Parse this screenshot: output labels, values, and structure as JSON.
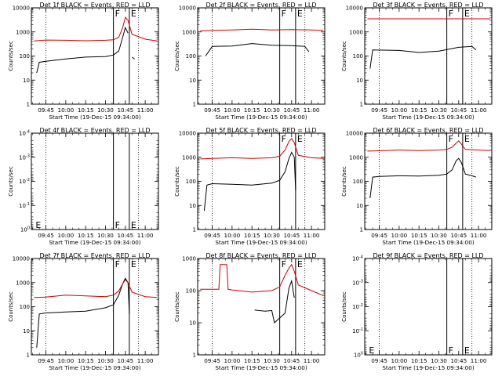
{
  "chart_data": [
    {
      "type": "line",
      "title": "Det 1f BLACK = Events, RED = LLD",
      "xlabel": "Start Time (19-Dec-15 09:34:00)",
      "ylabel": "Counts/sec",
      "ylim": [
        1,
        10000
      ],
      "ytick_labels": [
        "1",
        "10",
        "100",
        "1000",
        "10000"
      ],
      "xtick_labels": [
        "09:45",
        "10:00",
        "10:15",
        "10:30",
        "10:45",
        "11:00"
      ],
      "markers": [
        {
          "label": "F",
          "time": "10:36"
        },
        {
          "label": "E",
          "time": "10:48"
        }
      ],
      "dotted_lines": [
        "09:45",
        "10:55"
      ],
      "series": [
        {
          "name": "Events",
          "color": "#000000",
          "x": [
            "09:38",
            "09:40",
            "09:45",
            "10:00",
            "10:15",
            "10:30",
            "10:36",
            "10:40",
            "10:43",
            "10:45",
            "10:47",
            "10:48",
            "10:50",
            "10:52"
          ],
          "values": [
            20,
            55,
            60,
            75,
            90,
            95,
            110,
            160,
            600,
            1500,
            900,
            null,
            90,
            75
          ]
        },
        {
          "name": "LLD",
          "color": "#cc0000",
          "x": [
            "09:36",
            "09:45",
            "10:00",
            "10:15",
            "10:30",
            "10:36",
            "10:40",
            "10:43",
            "10:45",
            "10:47",
            "10:50",
            "11:00",
            "11:09"
          ],
          "values": [
            420,
            460,
            450,
            430,
            450,
            470,
            600,
            1500,
            4000,
            3000,
            800,
            500,
            420
          ]
        }
      ]
    },
    {
      "type": "line",
      "title": "Det 2f BLACK = Events, RED = LLD",
      "xlabel": "Start Time (19-Dec-15 09:34:00)",
      "ylabel": "Counts/sec",
      "ylim": [
        1,
        10000
      ],
      "ytick_labels": [
        "1",
        "10",
        "100",
        "1000",
        "10000"
      ],
      "xtick_labels": [
        "09:45",
        "10:00",
        "10:15",
        "10:30",
        "10:45",
        "11:00"
      ],
      "markers": [
        {
          "label": "F",
          "time": "10:36"
        },
        {
          "label": "E",
          "time": "10:48"
        }
      ],
      "dotted_lines": [
        "09:45",
        "10:55"
      ],
      "series": [
        {
          "name": "Events",
          "color": "#000000",
          "x": [
            "09:40",
            "09:45",
            "10:00",
            "10:15",
            "10:30",
            "10:45",
            "10:55",
            "10:58"
          ],
          "values": [
            100,
            250,
            260,
            330,
            280,
            270,
            250,
            150
          ]
        },
        {
          "name": "LLD",
          "color": "#cc0000",
          "x": [
            "09:36",
            "09:45",
            "10:00",
            "10:15",
            "10:30",
            "10:45",
            "11:00",
            "11:09"
          ],
          "values": [
            1100,
            1150,
            1200,
            1300,
            1200,
            1250,
            1200,
            1150
          ]
        }
      ]
    },
    {
      "type": "line",
      "title": "Det 3f BLACK = Events, RED = LLD",
      "xlabel": "Start Time (19-Dec-15 09:34:00)",
      "ylabel": "Counts/sec",
      "ylim": [
        1,
        10000
      ],
      "ytick_labels": [
        "1",
        "10",
        "100",
        "1000",
        "10000"
      ],
      "xtick_labels": [
        "09:45",
        "10:00",
        "10:15",
        "10:30",
        "10:45",
        "11:00"
      ],
      "markers": [
        {
          "label": "F",
          "time": "10:36"
        },
        {
          "label": "E",
          "time": "10:48"
        }
      ],
      "dotted_lines": [
        "09:45",
        "10:55"
      ],
      "series": [
        {
          "name": "Events",
          "color": "#000000",
          "x": [
            "09:38",
            "09:40",
            "10:00",
            "10:15",
            "10:30",
            "10:45",
            "10:55",
            "10:58"
          ],
          "values": [
            30,
            180,
            170,
            140,
            160,
            230,
            250,
            180
          ]
        },
        {
          "name": "LLD",
          "color": "#cc0000",
          "x": [
            "09:36",
            "11:09"
          ],
          "values": [
            3500,
            3500
          ]
        }
      ]
    },
    {
      "type": "line",
      "title": "Det 4f BLACK = Events, RED = LLD",
      "xlabel": "Start Time (19-Dec-15 09:34:00)",
      "ylabel": "Counts/sec",
      "ylim": [
        1,
        0.0001
      ],
      "ytick_labels": [
        "10^0",
        "10^-1",
        "10^-2",
        "10^-3",
        "10^-4"
      ],
      "xtick_labels": [
        "09:45",
        "10:00",
        "10:15",
        "10:30",
        "10:45",
        "11:00"
      ],
      "markers": [
        {
          "label": "F",
          "time": "10:36"
        },
        {
          "label": "E",
          "time": "10:48"
        },
        {
          "label": "E",
          "time": "09:36"
        }
      ],
      "dotted_lines": [
        "09:45",
        "10:55"
      ],
      "series": []
    },
    {
      "type": "line",
      "title": "Det 5f BLACK = Events, RED = LLD",
      "xlabel": "Start Time (19-Dec-15 09:34:00)",
      "ylabel": "Counts/sec",
      "ylim": [
        1,
        10000
      ],
      "ytick_labels": [
        "1",
        "10",
        "100",
        "1000",
        "10000"
      ],
      "xtick_labels": [
        "09:45",
        "10:00",
        "10:15",
        "10:30",
        "10:45",
        "11:00"
      ],
      "markers": [
        {
          "label": "F",
          "time": "10:36"
        },
        {
          "label": "E",
          "time": "10:48"
        }
      ],
      "dotted_lines": [
        "09:45",
        "10:55"
      ],
      "series": [
        {
          "name": "Events",
          "color": "#000000",
          "x": [
            "09:39",
            "09:41",
            "09:45",
            "10:00",
            "10:15",
            "10:30",
            "10:36",
            "10:40",
            "10:43",
            "10:45",
            "10:47",
            "10:48"
          ],
          "values": [
            6,
            70,
            80,
            75,
            70,
            85,
            110,
            250,
            900,
            1600,
            1000,
            40
          ]
        },
        {
          "name": "LLD",
          "color": "#cc0000",
          "x": [
            "09:36",
            "09:45",
            "10:00",
            "10:15",
            "10:30",
            "10:36",
            "10:40",
            "10:43",
            "10:45",
            "10:47",
            "10:50",
            "11:00",
            "11:09"
          ],
          "values": [
            850,
            900,
            950,
            900,
            950,
            1100,
            2000,
            4500,
            6000,
            4000,
            1200,
            950,
            900
          ]
        }
      ]
    },
    {
      "type": "line",
      "title": "Det 6f BLACK = Events, RED = LLD",
      "xlabel": "Start Time (19-Dec-15 09:34:00)",
      "ylabel": "Counts/sec",
      "ylim": [
        1,
        10000
      ],
      "ytick_labels": [
        "1",
        "10",
        "100",
        "1000",
        "10000"
      ],
      "xtick_labels": [
        "09:45",
        "10:00",
        "10:15",
        "10:30",
        "10:45",
        "11:00"
      ],
      "markers": [
        {
          "label": "F",
          "time": "10:36"
        },
        {
          "label": "E",
          "time": "10:48"
        }
      ],
      "dotted_lines": [
        "09:45",
        "10:55"
      ],
      "series": [
        {
          "name": "Events",
          "color": "#000000",
          "x": [
            "09:38",
            "09:40",
            "09:45",
            "10:00",
            "10:15",
            "10:30",
            "10:36",
            "10:40",
            "10:43",
            "10:45",
            "10:47",
            "10:50",
            "10:55",
            "10:58"
          ],
          "values": [
            20,
            150,
            160,
            170,
            165,
            180,
            200,
            300,
            700,
            900,
            600,
            200,
            170,
            150
          ]
        },
        {
          "name": "LLD",
          "color": "#cc0000",
          "x": [
            "09:36",
            "09:45",
            "10:00",
            "10:15",
            "10:30",
            "10:36",
            "10:40",
            "10:43",
            "10:45",
            "10:47",
            "10:50",
            "11:00",
            "11:09"
          ],
          "values": [
            1800,
            1850,
            2000,
            1900,
            2000,
            2100,
            2600,
            3800,
            4800,
            3500,
            2100,
            2000,
            1900
          ]
        }
      ]
    },
    {
      "type": "line",
      "title": "Det 7f BLACK = Events, RED = LLD",
      "xlabel": "Start Time (19-Dec-15 09:34:00)",
      "ylabel": "Counts/sec",
      "ylim": [
        1,
        10000
      ],
      "ytick_labels": [
        "1",
        "10",
        "100",
        "1000",
        "10000"
      ],
      "xtick_labels": [
        "09:45",
        "10:00",
        "10:15",
        "10:30",
        "10:45",
        "11:00"
      ],
      "markers": [
        {
          "label": "F",
          "time": "10:36"
        },
        {
          "label": "E",
          "time": "10:48"
        }
      ],
      "dotted_lines": [
        "09:45",
        "10:55"
      ],
      "series": [
        {
          "name": "Events",
          "color": "#000000",
          "x": [
            "09:38",
            "09:40",
            "09:45",
            "10:00",
            "10:15",
            "10:30",
            "10:36",
            "10:40",
            "10:43",
            "10:45",
            "10:47",
            "10:48"
          ],
          "values": [
            2,
            50,
            55,
            60,
            65,
            90,
            120,
            300,
            900,
            1500,
            1000,
            50
          ]
        },
        {
          "name": "LLD",
          "color": "#cc0000",
          "x": [
            "09:36",
            "09:45",
            "10:00",
            "10:15",
            "10:30",
            "10:36",
            "10:40",
            "10:43",
            "10:45",
            "10:47",
            "10:50",
            "11:00",
            "11:09"
          ],
          "values": [
            240,
            250,
            300,
            280,
            260,
            300,
            450,
            900,
            1300,
            1000,
            400,
            260,
            240
          ]
        }
      ]
    },
    {
      "type": "line",
      "title": "Det 8f BLACK = Events, RED = LLD",
      "xlabel": "Start Time (19-Dec-15 09:34:00)",
      "ylabel": "Counts/sec",
      "ylim": [
        1,
        1000
      ],
      "ytick_labels": [
        "1",
        "10",
        "100",
        "1000"
      ],
      "xtick_labels": [
        "09:45",
        "10:00",
        "10:15",
        "10:30",
        "10:45",
        "11:00"
      ],
      "markers": [
        {
          "label": "F",
          "time": "10:36"
        },
        {
          "label": "E",
          "time": "10:48"
        }
      ],
      "dotted_lines": [
        "09:45",
        "10:55"
      ],
      "series": [
        {
          "name": "Events",
          "color": "#000000",
          "x": [
            "10:17",
            "10:20",
            "10:25",
            "10:30",
            "10:32",
            "10:40",
            "10:43",
            "10:45",
            "10:47"
          ],
          "values": [
            25,
            24,
            23,
            24,
            10,
            20,
            120,
            200,
            60
          ]
        },
        {
          "name": "LLD",
          "color": "#cc0000",
          "x": [
            "09:36",
            "09:50",
            "09:51",
            "09:56",
            "09:57",
            "10:00",
            "10:15",
            "10:30",
            "10:36",
            "10:40",
            "10:43",
            "10:45",
            "10:47",
            "10:50",
            "11:00",
            "11:09"
          ],
          "values": [
            110,
            110,
            650,
            650,
            110,
            105,
            90,
            100,
            130,
            300,
            500,
            650,
            400,
            150,
            100,
            70
          ]
        }
      ]
    },
    {
      "type": "line",
      "title": "Det 9f BLACK = Events, RED = LLD",
      "xlabel": "Start Time (19-Dec-15 09:34:00)",
      "ylabel": "Counts/sec",
      "ylim": [
        1,
        0.0001
      ],
      "ytick_labels": [
        "10^0",
        "10^-1",
        "10^-2",
        "10^-3",
        "10^-4"
      ],
      "xtick_labels": [
        "09:45",
        "10:00",
        "10:15",
        "10:30",
        "10:45",
        "11:00"
      ],
      "markers": [
        {
          "label": "F",
          "time": "10:36"
        },
        {
          "label": "E",
          "time": "10:48"
        },
        {
          "label": "E",
          "time": "09:36"
        }
      ],
      "dotted_lines": [
        "09:45",
        "10:55"
      ],
      "series": []
    }
  ]
}
